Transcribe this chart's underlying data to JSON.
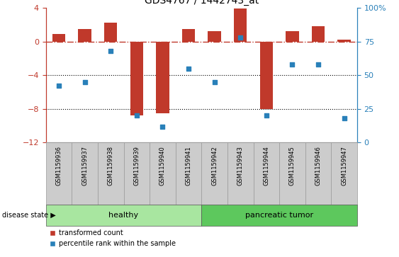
{
  "title": "GDS4767 / 1442743_at",
  "samples": [
    "GSM1159936",
    "GSM1159937",
    "GSM1159938",
    "GSM1159939",
    "GSM1159940",
    "GSM1159941",
    "GSM1159942",
    "GSM1159943",
    "GSM1159944",
    "GSM1159945",
    "GSM1159946",
    "GSM1159947"
  ],
  "bar_values": [
    0.9,
    1.5,
    2.2,
    -8.8,
    -8.5,
    1.5,
    1.2,
    3.9,
    -8.0,
    1.2,
    1.8,
    0.2
  ],
  "dot_values": [
    42,
    45,
    68,
    20,
    12,
    55,
    45,
    78,
    20,
    58,
    58,
    18
  ],
  "bar_color": "#C0392B",
  "dot_color": "#2980B9",
  "left_ylim": [
    -12,
    4
  ],
  "right_ylim": [
    0,
    100
  ],
  "left_yticks": [
    4,
    0,
    -4,
    -8,
    -12
  ],
  "right_yticks": [
    100,
    75,
    50,
    25,
    0
  ],
  "right_yticklabels": [
    "100%",
    "75",
    "50",
    "25",
    "0"
  ],
  "hline_color": "#C0392B",
  "dotted_lines": [
    -4,
    -8
  ],
  "dotted_color": "black",
  "healthy_label": "healthy",
  "tumor_label": "pancreatic tumor",
  "disease_state_label": "disease state",
  "healthy_color": "#A8E6A0",
  "tumor_color": "#5DC85D",
  "bar_legend": "transformed count",
  "dot_legend": "percentile rank within the sample",
  "healthy_count": 6,
  "tumor_count": 6,
  "bar_width": 0.5,
  "figsize": [
    5.63,
    3.63
  ],
  "dpi": 100
}
